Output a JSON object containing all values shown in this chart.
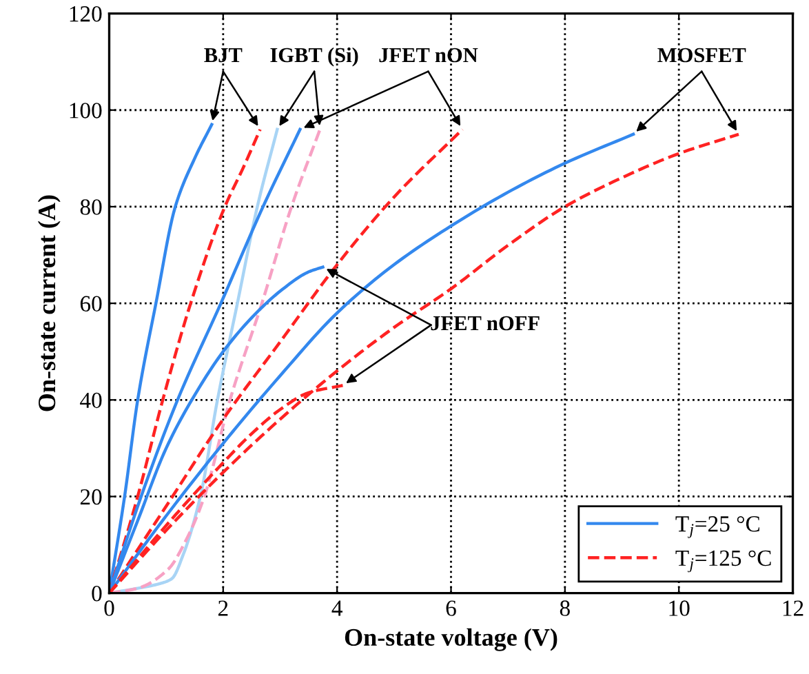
{
  "chart_data": {
    "type": "line",
    "xlabel": "On-state voltage (V)",
    "ylabel": "On-state current (A)",
    "xlim": [
      0,
      12
    ],
    "ylim": [
      0,
      120
    ],
    "xticks": [
      0,
      2,
      4,
      6,
      8,
      10,
      12
    ],
    "yticks": [
      0,
      20,
      40,
      60,
      80,
      100,
      120
    ],
    "grid": true,
    "legend": "bottom right",
    "annotations": [
      {
        "text": "BJT",
        "x": 1.8,
        "y": 97
      },
      {
        "text": "IGBT (Si)",
        "x": 2.95,
        "y": 96
      },
      {
        "text": "JFET nON",
        "x": 3.35,
        "y": 96
      },
      {
        "text": "MOSFET",
        "x": 9.2,
        "y": 95
      },
      {
        "text": "JFET nOFF",
        "x": 3.75,
        "y": 67.5
      }
    ],
    "series": [
      {
        "name": "T$_{j}$=25 °C",
        "color": "#3388ee",
        "line_style": "solid",
        "x": [
          0,
          0.27,
          0.5,
          0.82,
          1.16,
          1.5,
          1.8
        ],
        "values": [
          0,
          20,
          40,
          60,
          80,
          90,
          97
        ]
      },
      {
        "name": "T$_{j}$=125 °C",
        "color": "#ff2222",
        "line_style": "dashed",
        "x": [
          0,
          0.5,
          0.94,
          1.43,
          2.03,
          2.35,
          2.65
        ],
        "values": [
          0,
          20,
          40,
          60,
          80,
          88,
          96
        ]
      },
      {
        "color": "#a8d4f5",
        "line_style": "solid",
        "x": [
          0,
          0.5,
          0.9,
          1.1,
          1.3,
          1.6,
          1.9,
          2.25,
          2.6,
          2.95
        ],
        "values": [
          0,
          1,
          2,
          3,
          8,
          20,
          40,
          60,
          80,
          96
        ]
      },
      {
        "color": "#f7a1c4",
        "line_style": "dashed",
        "x": [
          0,
          0.5,
          1.04,
          1.35,
          1.67,
          2.12,
          2.68,
          3.2,
          3.7
        ],
        "values": [
          0,
          1,
          5,
          11,
          20,
          40,
          60,
          80,
          96
        ]
      },
      {
        "color": "#3388ee",
        "line_style": "solid",
        "x": [
          0,
          0.56,
          1.2,
          1.96,
          2.7,
          3.35
        ],
        "values": [
          0,
          20,
          40,
          60,
          80,
          96
        ]
      },
      {
        "color": "#ff2222",
        "line_style": "dashed",
        "x": [
          0,
          1,
          2,
          3,
          4,
          5,
          6.2
        ],
        "values": [
          0,
          18,
          36,
          52,
          68,
          82,
          96
        ]
      },
      {
        "color": "#3388ee",
        "line_style": "solid",
        "x": [
          0,
          1,
          2,
          3,
          4,
          5,
          6,
          7,
          8,
          9.2
        ],
        "values": [
          0,
          16,
          31,
          45,
          58,
          68,
          76,
          83,
          89,
          95
        ]
      },
      {
        "color": "#ff2222",
        "line_style": "dashed",
        "x": [
          0,
          1,
          2,
          3,
          4,
          5,
          6,
          7,
          8,
          9,
          10,
          11.05
        ],
        "values": [
          0,
          13,
          25,
          36,
          46,
          55,
          63,
          72,
          80,
          86,
          91,
          95
        ]
      },
      {
        "color": "#3388ee",
        "line_style": "solid",
        "x": [
          0,
          0.5,
          1,
          1.5,
          2,
          2.5,
          3,
          3.5,
          3.75
        ],
        "values": [
          0,
          15,
          30,
          41,
          50,
          57,
          62.5,
          66.5,
          67.5
        ]
      },
      {
        "color": "#ff2222",
        "line_style": "dashed",
        "x": [
          0,
          1,
          2,
          2.5,
          3,
          3.5,
          4.1
        ],
        "values": [
          0,
          14,
          27,
          33,
          38,
          41.5,
          43
        ]
      }
    ]
  }
}
